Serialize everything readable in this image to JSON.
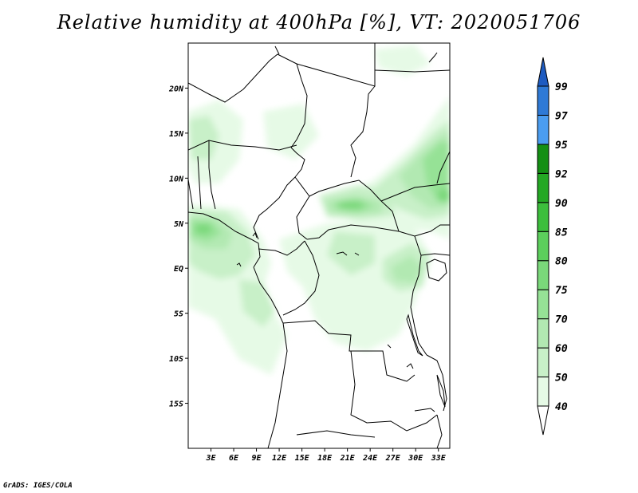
{
  "title": "Relative humidity at 400hPa [%], VT: 2020051706",
  "credit": "GrADS: IGES/COLA",
  "map": {
    "lon_range": [
      0,
      34.5
    ],
    "lat_range": [
      -20,
      25
    ],
    "lat_ticks": [
      {
        "value": 20,
        "label": "20N"
      },
      {
        "value": 15,
        "label": "15N"
      },
      {
        "value": 10,
        "label": "10N"
      },
      {
        "value": 5,
        "label": "5N"
      },
      {
        "value": 0,
        "label": "EQ"
      },
      {
        "value": -5,
        "label": "5S"
      },
      {
        "value": -10,
        "label": "10S"
      },
      {
        "value": -15,
        "label": "15S"
      }
    ],
    "lon_ticks": [
      {
        "value": 3,
        "label": "3E"
      },
      {
        "value": 6,
        "label": "6E"
      },
      {
        "value": 9,
        "label": "9E"
      },
      {
        "value": 12,
        "label": "12E"
      },
      {
        "value": 15,
        "label": "15E"
      },
      {
        "value": 18,
        "label": "18E"
      },
      {
        "value": 21,
        "label": "21E"
      },
      {
        "value": 24,
        "label": "24E"
      },
      {
        "value": 27,
        "label": "27E"
      },
      {
        "value": 30,
        "label": "30E"
      },
      {
        "value": 33,
        "label": "33E"
      }
    ]
  },
  "colorbar": {
    "levels": [
      "40",
      "50",
      "60",
      "70",
      "75",
      "80",
      "85",
      "90",
      "92",
      "95",
      "97",
      "99"
    ],
    "colors": [
      "#ffffff",
      "#e6fae6",
      "#c8f0c8",
      "#b2e9b2",
      "#96e296",
      "#7ad87a",
      "#5ccf5c",
      "#3cbe3c",
      "#24a824",
      "#148f14",
      "#4b9df0",
      "#2f7ad6",
      "#1e5bc0"
    ]
  },
  "chart_data": {
    "type": "heatmap",
    "title": "Relative humidity at 400hPa [%], VT: 2020051706",
    "variable": "Relative humidity",
    "level": "400hPa",
    "units": "%",
    "valid_time": "2020051706",
    "x_ticks": [
      "3E",
      "6E",
      "9E",
      "12E",
      "15E",
      "18E",
      "21E",
      "24E",
      "27E",
      "30E",
      "33E"
    ],
    "y_ticks": [
      "20N",
      "15N",
      "10N",
      "5N",
      "EQ",
      "5S",
      "10S",
      "15S"
    ],
    "contour_levels": [
      40,
      50,
      60,
      70,
      75,
      80,
      85,
      90,
      92,
      95,
      97,
      99
    ],
    "humid_regions": [
      {
        "lon": [
          0,
          9
        ],
        "lat": [
          2,
          6
        ],
        "max_level": 80
      },
      {
        "lon": [
          17,
          25
        ],
        "lat": [
          6,
          9
        ],
        "max_level": 80
      },
      {
        "lon": [
          25,
          34.5
        ],
        "lat": [
          7,
          17
        ],
        "max_level": 75
      },
      {
        "lon": [
          0,
          6
        ],
        "lat": [
          12,
          16
        ],
        "max_level": 60
      },
      {
        "lon": [
          18,
          28
        ],
        "lat": [
          -4,
          4
        ],
        "max_level": 70
      }
    ]
  }
}
